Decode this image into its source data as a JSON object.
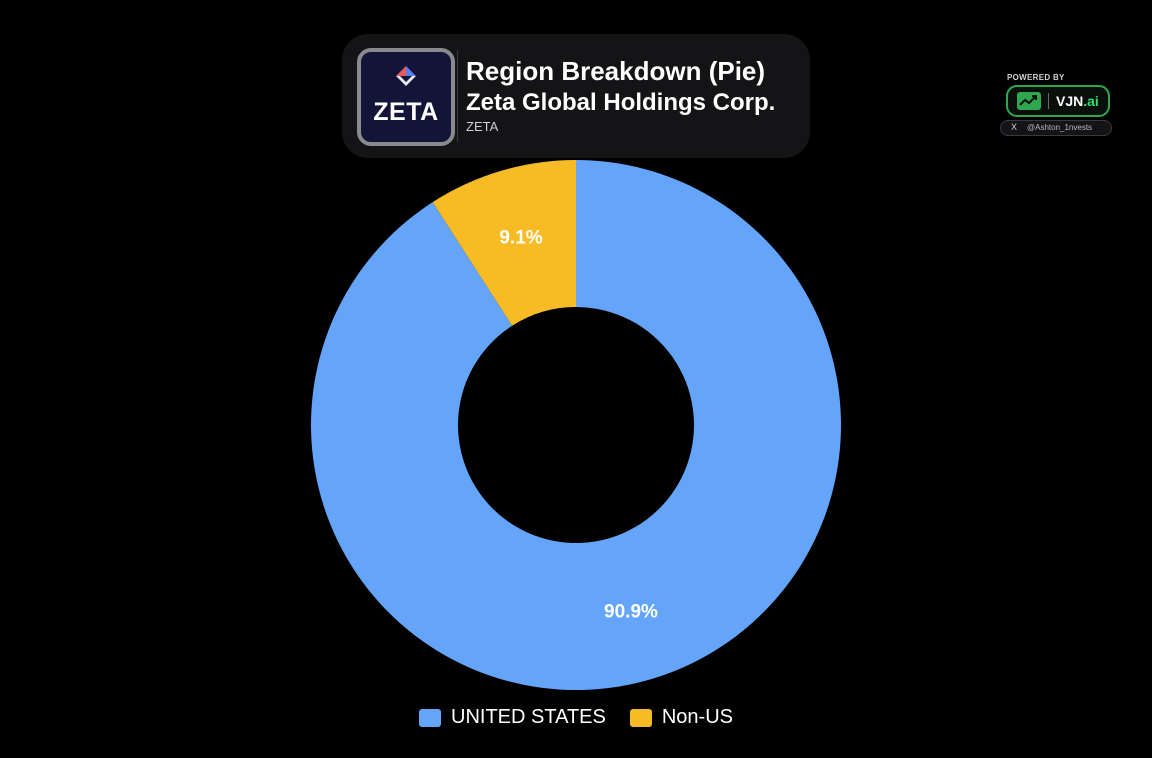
{
  "header": {
    "logo_text": "ZETA",
    "title": "Region Breakdown (Pie)",
    "company": "Zeta Global Holdings Corp.",
    "ticker": "ZETA"
  },
  "badge": {
    "powered_by": "POWERED BY",
    "brand_main": "VJN",
    "brand_accent": ".ai",
    "x_icon": "X",
    "handle": "@Ashton_1nvests",
    "accent_color": "#2ea84e"
  },
  "chart_data": {
    "type": "pie",
    "subtype": "donut",
    "title": "Region Breakdown (Pie)",
    "categories": [
      "UNITED STATES",
      "Non-US"
    ],
    "values": [
      90.9,
      9.1
    ],
    "value_labels": [
      "90.9%",
      "9.1%"
    ],
    "colors": [
      "#64a5f9",
      "#f6bb25"
    ],
    "legend_position": "bottom"
  }
}
